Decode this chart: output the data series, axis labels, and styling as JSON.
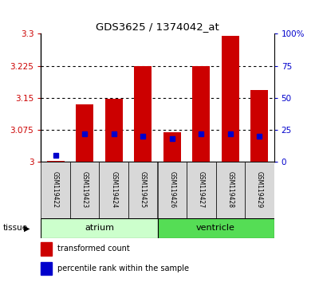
{
  "title": "GDS3625 / 1374042_at",
  "samples": [
    "GSM119422",
    "GSM119423",
    "GSM119424",
    "GSM119425",
    "GSM119426",
    "GSM119427",
    "GSM119428",
    "GSM119429"
  ],
  "transformed_counts": [
    3.002,
    3.135,
    3.148,
    3.225,
    3.068,
    3.225,
    3.295,
    3.168
  ],
  "percentile_ranks": [
    5,
    22,
    22,
    20,
    18,
    22,
    22,
    20
  ],
  "ylim_left": [
    3.0,
    3.3
  ],
  "ylim_right": [
    0,
    100
  ],
  "yticks_left": [
    3.0,
    3.075,
    3.15,
    3.225,
    3.3
  ],
  "yticks_right": [
    0,
    25,
    50,
    75,
    100
  ],
  "ytick_labels_left": [
    "3",
    "3.075",
    "3.15",
    "3.225",
    "3.3"
  ],
  "ytick_labels_right": [
    "0",
    "25",
    "50",
    "75",
    "100%"
  ],
  "bar_color": "#cc0000",
  "dot_color": "#0000cc",
  "bar_width": 0.6,
  "tissue_groups": [
    {
      "label": "atrium",
      "start": 0,
      "end": 4,
      "color": "#ccffcc"
    },
    {
      "label": "ventricle",
      "start": 4,
      "end": 8,
      "color": "#55dd55"
    }
  ],
  "legend_items": [
    {
      "color": "#cc0000",
      "label": "transformed count"
    },
    {
      "color": "#0000cc",
      "label": "percentile rank within the sample"
    }
  ],
  "bar_base": 3.0
}
